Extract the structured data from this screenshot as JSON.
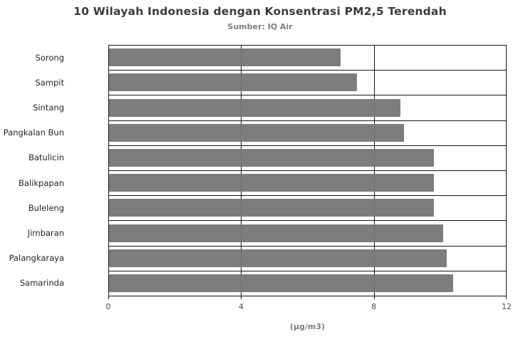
{
  "header": {
    "title": "10 Wilayah Indonesia dengan Konsentrasi PM2,5 Terendah",
    "subtitle": "Sumber: IQ Air"
  },
  "chart_data": {
    "type": "bar",
    "orientation": "horizontal",
    "title": "10 Wilayah Indonesia dengan Konsentrasi PM2,5 Terendah",
    "subtitle": "Sumber: IQ Air",
    "categories": [
      "Sorong",
      "Sampit",
      "Sintang",
      "Pangkalan Bun",
      "Batulicin",
      "Balikpapan",
      "Buleleng",
      "Jimbaran",
      "Palangkaraya",
      "Samarinda"
    ],
    "values": [
      7.0,
      7.5,
      8.8,
      8.9,
      9.8,
      9.8,
      9.8,
      10.1,
      10.2,
      10.4
    ],
    "xlabel": "(µg/m3)",
    "ylabel": "",
    "xlim": [
      0,
      12
    ],
    "xticks": [
      0,
      4,
      8,
      12
    ],
    "grid": true,
    "legend": "none",
    "bar_color": "#7a7a7a",
    "grid_color": "#161616",
    "title_color": "#3c3c3c",
    "subtitle_color": "#7e7e7e",
    "background": "#ffffff"
  }
}
